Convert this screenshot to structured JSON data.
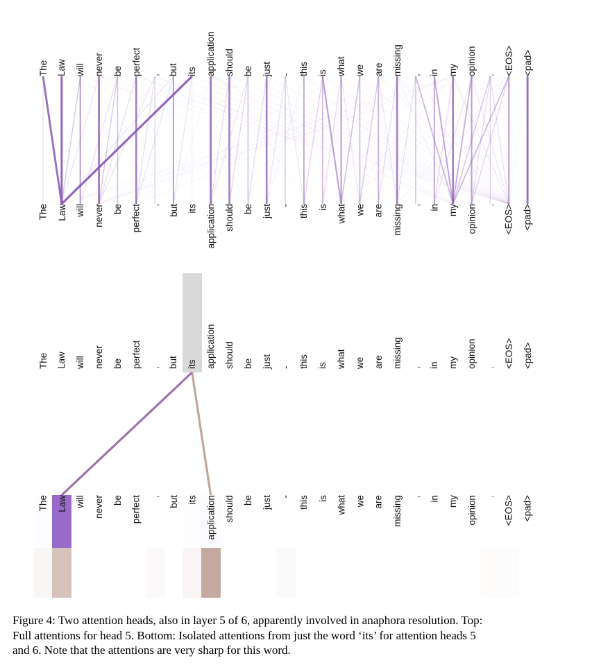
{
  "tokens": [
    "The",
    "Law",
    "will",
    "never",
    "be",
    "perfect",
    ",",
    "but",
    "its",
    "application",
    "should",
    "be",
    "just",
    "-",
    "this",
    "is",
    "what",
    "we",
    "are",
    "missing",
    ",",
    "in",
    "my",
    "opinion",
    ".",
    "<EOS>",
    "<pad>"
  ],
  "colors": {
    "attention_line_purple": "#8a5cb8",
    "isolated_line_purple": "#8d5a9e",
    "head5_box_purple": "#8d5bc4",
    "head6_box_tan": "#9c6f60",
    "isolated_line_tan": "#9c6f60",
    "selection_gray": "#d9d9d9",
    "token_text": "#111111"
  },
  "top_panel": {
    "edges": [
      [
        0,
        0,
        0.12
      ],
      [
        1,
        1,
        0.85
      ],
      [
        2,
        2,
        0.5
      ],
      [
        3,
        3,
        0.75
      ],
      [
        4,
        4,
        0.3
      ],
      [
        5,
        5,
        0.7
      ],
      [
        6,
        6,
        0.2
      ],
      [
        7,
        7,
        0.5
      ],
      [
        8,
        8,
        0.08
      ],
      [
        9,
        9,
        0.75
      ],
      [
        10,
        10,
        0.7
      ],
      [
        11,
        11,
        0.3
      ],
      [
        12,
        12,
        0.7
      ],
      [
        13,
        13,
        0.25
      ],
      [
        14,
        14,
        0.45
      ],
      [
        15,
        15,
        0.35
      ],
      [
        16,
        16,
        0.5
      ],
      [
        17,
        17,
        0.35
      ],
      [
        18,
        18,
        0.4
      ],
      [
        19,
        19,
        0.7
      ],
      [
        20,
        20,
        0.3
      ],
      [
        21,
        21,
        0.45
      ],
      [
        22,
        22,
        0.7
      ],
      [
        23,
        23,
        0.5
      ],
      [
        24,
        24,
        0.2
      ],
      [
        25,
        25,
        0.5
      ],
      [
        26,
        26,
        0.8
      ],
      [
        0,
        1,
        0.8
      ],
      [
        8,
        1,
        0.9
      ],
      [
        2,
        1,
        0.25
      ],
      [
        3,
        1,
        0.1
      ],
      [
        7,
        1,
        0.1
      ],
      [
        4,
        3,
        0.25
      ],
      [
        5,
        3,
        0.15
      ],
      [
        6,
        3,
        0.1
      ],
      [
        4,
        2,
        0.15
      ],
      [
        6,
        5,
        0.15
      ],
      [
        7,
        5,
        0.12
      ],
      [
        8,
        7,
        0.12
      ],
      [
        10,
        9,
        0.15
      ],
      [
        11,
        10,
        0.18
      ],
      [
        11,
        9,
        0.1
      ],
      [
        12,
        11,
        0.15
      ],
      [
        13,
        12,
        0.12
      ],
      [
        14,
        12,
        0.08
      ],
      [
        13,
        14,
        0.1
      ],
      [
        15,
        14,
        0.2
      ],
      [
        15,
        16,
        0.5
      ],
      [
        17,
        16,
        0.3
      ],
      [
        16,
        15,
        0.15
      ],
      [
        18,
        17,
        0.25
      ],
      [
        16,
        17,
        0.1
      ],
      [
        19,
        18,
        0.15
      ],
      [
        18,
        19,
        0.1
      ],
      [
        20,
        19,
        0.15
      ],
      [
        21,
        22,
        0.45
      ],
      [
        20,
        22,
        0.35
      ],
      [
        23,
        22,
        0.4
      ],
      [
        25,
        22,
        0.35
      ],
      [
        24,
        22,
        0.25
      ],
      [
        19,
        22,
        0.08
      ],
      [
        25,
        23,
        0.2
      ],
      [
        24,
        23,
        0.15
      ],
      [
        22,
        21,
        0.15
      ],
      [
        23,
        21,
        0.12
      ],
      [
        9,
        7,
        0.06
      ],
      [
        26,
        25,
        0.05
      ],
      [
        2,
        25,
        0.05
      ],
      [
        3,
        25,
        0.05
      ],
      [
        5,
        25,
        0.06
      ],
      [
        7,
        25,
        0.05
      ],
      [
        8,
        25,
        0.05
      ],
      [
        9,
        25,
        0.06
      ],
      [
        10,
        25,
        0.05
      ],
      [
        12,
        25,
        0.06
      ],
      [
        14,
        25,
        0.05
      ],
      [
        15,
        25,
        0.05
      ],
      [
        16,
        25,
        0.05
      ],
      [
        18,
        25,
        0.05
      ],
      [
        19,
        25,
        0.07
      ],
      [
        21,
        25,
        0.05
      ],
      [
        22,
        25,
        0.1
      ],
      [
        23,
        25,
        0.1
      ],
      [
        24,
        25,
        0.14
      ],
      [
        4,
        25,
        0.04
      ],
      [
        11,
        25,
        0.04
      ],
      [
        17,
        25,
        0.04
      ],
      [
        20,
        25,
        0.04
      ],
      [
        13,
        25,
        0.04
      ],
      [
        6,
        25,
        0.04
      ],
      [
        25,
        1,
        0.05
      ],
      [
        22,
        1,
        0.05
      ],
      [
        19,
        3,
        0.05
      ],
      [
        22,
        3,
        0.05
      ],
      [
        16,
        3,
        0.04
      ],
      [
        23,
        3,
        0.04
      ],
      [
        21,
        3,
        0.04
      ],
      [
        22,
        5,
        0.05
      ],
      [
        22,
        16,
        0.06
      ],
      [
        25,
        16,
        0.05
      ],
      [
        25,
        19,
        0.05
      ],
      [
        25,
        21,
        0.04
      ],
      [
        5,
        22,
        0.05
      ],
      [
        9,
        22,
        0.05
      ],
      [
        14,
        22,
        0.05
      ],
      [
        1,
        22,
        0.04
      ],
      [
        6,
        22,
        0.05
      ],
      [
        12,
        16,
        0.04
      ],
      [
        10,
        14,
        0.04
      ],
      [
        3,
        16,
        0.04
      ]
    ]
  },
  "bottom_panel": {
    "selected_token": "its",
    "selected_token_index": 8,
    "isolated_lines": [
      {
        "to_index": 1,
        "to_token": "Law",
        "color_key": "isolated_line_purple",
        "opacity": 0.85
      },
      {
        "to_index": 9,
        "to_token": "application",
        "color_key": "isolated_line_tan",
        "opacity": 0.62
      }
    ],
    "head5_weights": {
      "0": 0.015,
      "1": 0.9,
      "8": 0.015,
      "9": 0.03
    },
    "head6_weights": {
      "0": 0.06,
      "1": 0.42,
      "6": 0.04,
      "8": 0.07,
      "9": 0.6,
      "13": 0.04,
      "24": 0.025,
      "25": 0.02
    }
  },
  "caption": {
    "lines": [
      "Figure 4: Two attention heads, also in layer 5 of 6, apparently involved in anaphora resolution. Top:",
      "Full attentions for head 5. Bottom: Isolated attentions from just the word ‘its’ for attention heads 5",
      "and 6. Note that the attentions are very sharp for this word."
    ]
  }
}
